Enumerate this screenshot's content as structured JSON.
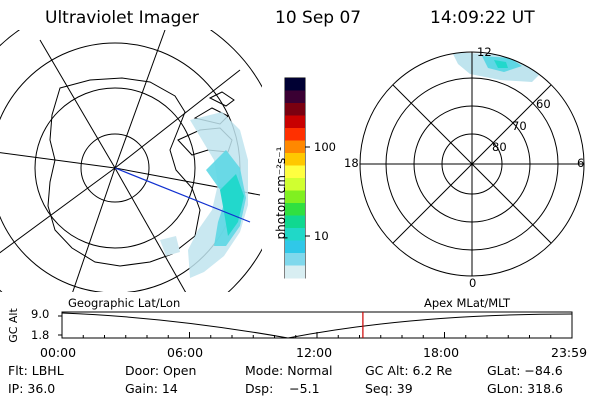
{
  "header": {
    "instrument": "Ultraviolet Imager",
    "date": "10 Sep 07",
    "time": "14:09:22 UT"
  },
  "colorbar": {
    "unit": "photon cm⁻²s⁻¹",
    "ticks": [
      "100",
      "10"
    ],
    "colors": [
      "#000033",
      "#3a0033",
      "#7a0010",
      "#c80000",
      "#ff3000",
      "#ff8800",
      "#ffc800",
      "#ffff40",
      "#d0ff30",
      "#80f020",
      "#30e040",
      "#10d890",
      "#20d8c8",
      "#30c8e8",
      "#80d8ec",
      "#d8eef2"
    ]
  },
  "polar_plot": {
    "mlt_labels": {
      "top": "12",
      "left": "18",
      "right": "6",
      "bottom": "0"
    },
    "lat_labels": [
      "60",
      "70",
      "80"
    ]
  },
  "timeline": {
    "title_left": "Geographic Lat/Lon",
    "title_right": "Apex MLat/MLT",
    "y_axis_label": "GC Alt",
    "y_ticks": [
      "9.0",
      "1.8"
    ],
    "x_ticks": [
      "00:00",
      "06:00",
      "12:00",
      "18:00",
      "23:59"
    ],
    "current_time_fraction": 0.59,
    "accent_color": "#cc0000"
  },
  "footer": {
    "flt": "Flt: LBHL",
    "door": "Door: Open",
    "mode": "Mode: Normal",
    "gc_alt": "GC Alt: 6.2 Re",
    "glat": "GLat: −84.6",
    "ip": "IP: 36.0",
    "gain": "Gain: 14",
    "dsp": "Dsp:    −5.1",
    "seq": "Seq: 39",
    "glon": "GLon: 318.6"
  }
}
